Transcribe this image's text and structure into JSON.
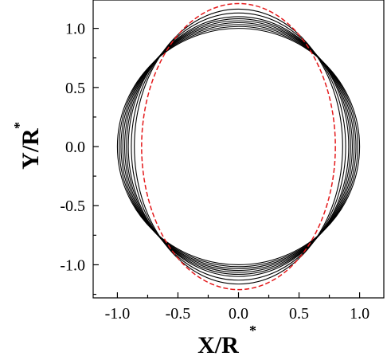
{
  "chart_data": {
    "type": "line",
    "xlabel": "X/R",
    "xlabel_superscript": "*",
    "ylabel": "Y/R",
    "ylabel_superscript": "*",
    "xlim": [
      -1.2,
      1.2
    ],
    "ylim": [
      -1.28,
      1.24
    ],
    "x_ticks": [
      -1.0,
      -0.5,
      0.0,
      0.5,
      1.0
    ],
    "x_tick_labels": [
      "-1.0",
      "-0.5",
      "0.0",
      "0.5",
      "1.0"
    ],
    "y_ticks": [
      -1.0,
      -0.5,
      0.0,
      0.5,
      1.0
    ],
    "y_tick_labels": [
      "-1.0",
      "-0.5",
      "0.0",
      "0.5",
      "1.0"
    ],
    "grid": false,
    "legend": "none",
    "series": [
      {
        "shape": "ellipse",
        "rx": 1.0,
        "ry": 1.0,
        "style": "solid",
        "color": "#000000"
      },
      {
        "shape": "ellipse",
        "rx": 0.985,
        "ry": 1.016,
        "style": "solid",
        "color": "#000000"
      },
      {
        "shape": "ellipse",
        "rx": 0.97,
        "ry": 1.032,
        "style": "solid",
        "color": "#000000"
      },
      {
        "shape": "ellipse",
        "rx": 0.955,
        "ry": 1.048,
        "style": "solid",
        "color": "#000000"
      },
      {
        "shape": "ellipse",
        "rx": 0.94,
        "ry": 1.064,
        "style": "solid",
        "color": "#000000"
      },
      {
        "shape": "ellipse",
        "rx": 0.925,
        "ry": 1.081,
        "style": "solid",
        "color": "#000000"
      },
      {
        "shape": "ellipse",
        "rx": 0.91,
        "ry": 1.099,
        "style": "solid",
        "color": "#000000"
      },
      {
        "shape": "ellipse",
        "rx": 0.885,
        "ry": 1.13,
        "style": "solid",
        "color": "#000000"
      },
      {
        "shape": "ellipse",
        "rx": 0.86,
        "ry": 1.163,
        "style": "solid",
        "color": "#000000"
      },
      {
        "shape": "ellipse",
        "rx": 0.8,
        "ry": 1.21,
        "style": "dashed",
        "color": "#e41a1c"
      }
    ]
  }
}
